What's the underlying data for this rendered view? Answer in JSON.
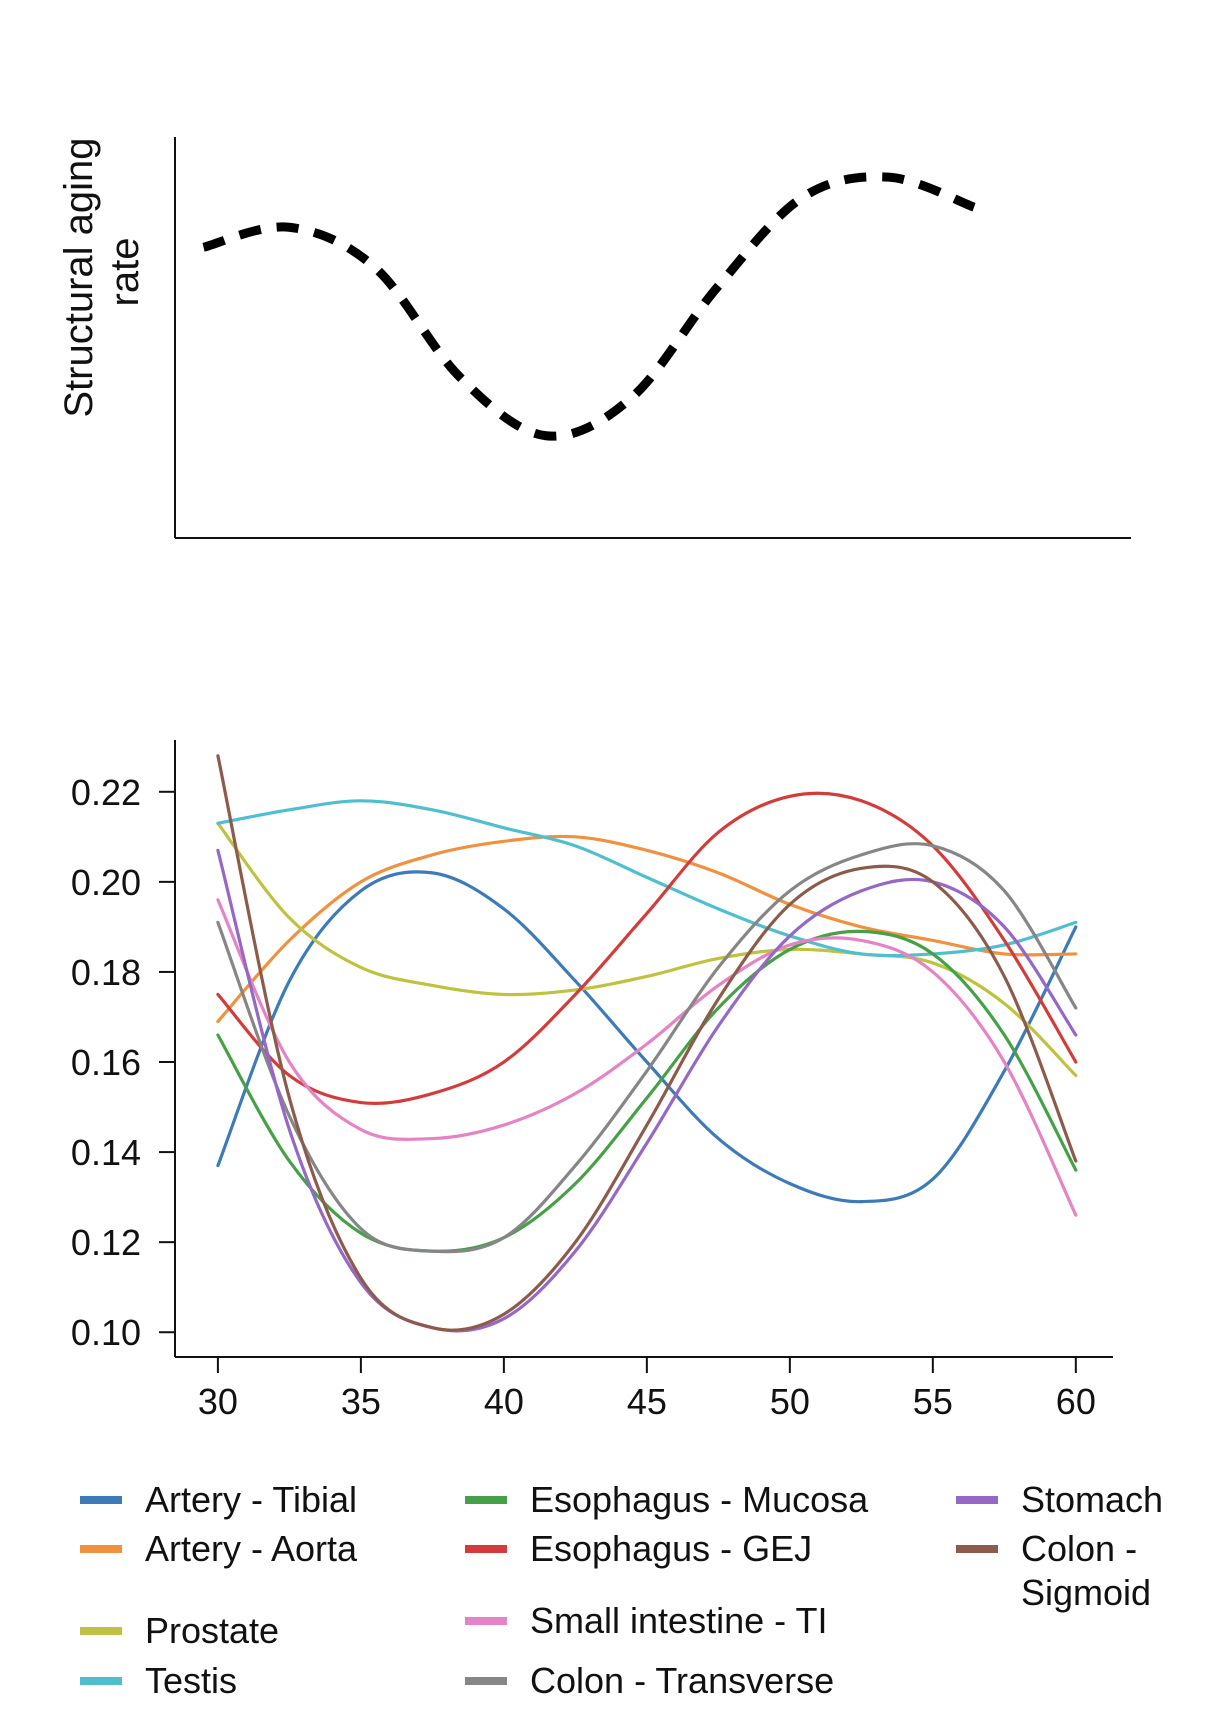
{
  "chart_data": [
    {
      "type": "line",
      "ylabel": [
        "Structural aging",
        "rate"
      ],
      "xlabel": "",
      "x": [
        30,
        33,
        36,
        39,
        42,
        45,
        48,
        51,
        54,
        57
      ],
      "series": [
        {
          "values": [
            0.195,
            0.205,
            0.185,
            0.13,
            0.101,
            0.12,
            0.175,
            0.22,
            0.23,
            0.215
          ],
          "color": "#000000",
          "style": "dashed"
        }
      ],
      "xlim": [
        29,
        62.5
      ],
      "ylim": [
        0.05,
        0.25
      ],
      "grid": false,
      "ticks": false
    },
    {
      "type": "line",
      "title": "",
      "xlabel": "",
      "ylabel": "",
      "xlim": [
        28.5,
        61.3
      ],
      "ylim": [
        0.0945,
        0.2315
      ],
      "xticks": [
        "30",
        "35",
        "40",
        "45",
        "50",
        "55",
        "60"
      ],
      "xtick_values": [
        30,
        35,
        40,
        45,
        50,
        55,
        60
      ],
      "yticks": [
        "0.10",
        "0.12",
        "0.14",
        "0.16",
        "0.18",
        "0.20",
        "0.22"
      ],
      "ytick_values": [
        0.1,
        0.12,
        0.14,
        0.16,
        0.18,
        0.2,
        0.22
      ],
      "grid": false,
      "legend_position": "bottom",
      "x": [
        30,
        32.5,
        35,
        37.5,
        40,
        42.5,
        45,
        47.5,
        50,
        52.5,
        55,
        57.5,
        60
      ],
      "series": [
        {
          "name": "Artery - Tibial",
          "color": "#3d7ab8",
          "values": [
            0.137,
            0.178,
            0.198,
            0.202,
            0.194,
            0.178,
            0.16,
            0.143,
            0.133,
            0.129,
            0.134,
            0.158,
            0.19
          ]
        },
        {
          "name": "Artery - Aorta",
          "color": "#f0913f",
          "values": [
            0.169,
            0.187,
            0.2,
            0.206,
            0.209,
            0.21,
            0.207,
            0.202,
            0.195,
            0.19,
            0.187,
            0.184,
            0.184
          ]
        },
        {
          "name": "Prostate",
          "color": "#bfc240",
          "values": [
            0.213,
            0.192,
            0.181,
            0.177,
            0.175,
            0.176,
            0.179,
            0.183,
            0.185,
            0.184,
            0.182,
            0.173,
            0.157
          ]
        },
        {
          "name": "Testis",
          "color": "#4fbfd0",
          "values": [
            0.213,
            0.216,
            0.218,
            0.216,
            0.212,
            0.208,
            0.201,
            0.194,
            0.188,
            0.184,
            0.184,
            0.186,
            0.191
          ]
        },
        {
          "name": "Esophagus - Mucosa",
          "color": "#46a048",
          "values": [
            0.166,
            0.138,
            0.122,
            0.118,
            0.121,
            0.133,
            0.152,
            0.172,
            0.185,
            0.189,
            0.184,
            0.166,
            0.136
          ]
        },
        {
          "name": "Esophagus - GEJ",
          "color": "#d23c3a",
          "values": [
            0.175,
            0.157,
            0.151,
            0.153,
            0.16,
            0.175,
            0.193,
            0.211,
            0.219,
            0.218,
            0.208,
            0.187,
            0.16
          ]
        },
        {
          "name": "Small intestine - TI",
          "color": "#e484c6",
          "values": [
            0.196,
            0.16,
            0.145,
            0.143,
            0.146,
            0.153,
            0.164,
            0.177,
            0.186,
            0.187,
            0.18,
            0.16,
            0.126
          ]
        },
        {
          "name": "Colon - Transverse",
          "color": "#868686",
          "values": [
            0.191,
            0.148,
            0.123,
            0.118,
            0.121,
            0.137,
            0.158,
            0.181,
            0.198,
            0.206,
            0.208,
            0.198,
            0.172
          ]
        },
        {
          "name": "Stomach",
          "color": "#9568c5",
          "values": [
            0.207,
            0.145,
            0.111,
            0.101,
            0.103,
            0.118,
            0.142,
            0.168,
            0.188,
            0.198,
            0.2,
            0.19,
            0.166
          ]
        },
        {
          "name": "Colon - Sigmoid",
          "color": "#8c5b4b",
          "values": [
            0.228,
            0.152,
            0.112,
            0.101,
            0.104,
            0.12,
            0.146,
            0.174,
            0.195,
            0.203,
            0.2,
            0.179,
            0.138
          ]
        }
      ]
    }
  ],
  "legend": {
    "items": [
      {
        "label": "Artery - Tibial",
        "color": "#3d7ab8"
      },
      {
        "label": "Artery - Aorta",
        "color": "#f0913f"
      },
      {
        "label": "Prostate",
        "color": "#bfc240"
      },
      {
        "label": "Testis",
        "color": "#4fbfd0"
      },
      {
        "label": "Esophagus - Mucosa",
        "color": "#46a048"
      },
      {
        "label": "Esophagus - GEJ",
        "color": "#d23c3a"
      },
      {
        "label": "Small intestine - TI",
        "color": "#e484c6"
      },
      {
        "label": "Colon - Transverse",
        "color": "#868686"
      },
      {
        "label": "Stomach",
        "color": "#9568c5"
      },
      {
        "label": [
          "Colon -",
          "Sigmoid"
        ],
        "color": "#8c5b4b"
      }
    ]
  }
}
